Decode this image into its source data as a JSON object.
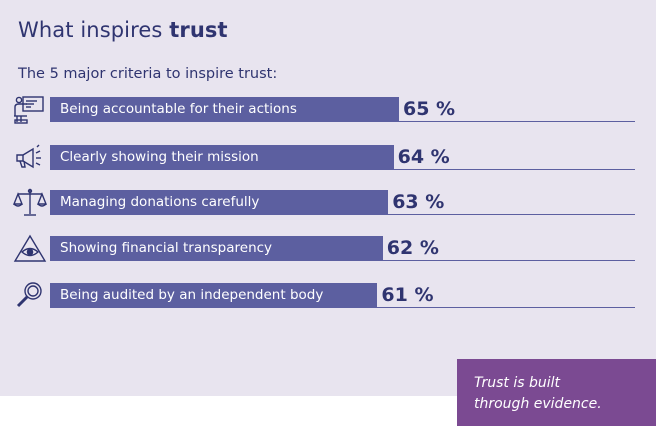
{
  "title_regular": "What inspires",
  "title_bold": "trust",
  "chart_data": {
    "type": "bar",
    "orientation": "horizontal",
    "title": "What inspires trust",
    "subtitle": "The 5 major criteria to inspire trust:",
    "unit": "%",
    "xlim": [
      0,
      100
    ],
    "categories": [
      "Being accountable for their actions",
      "Clearly showing their mission",
      "Managing donations carefully",
      "Showing financial transparency",
      "Being audited by an independent body"
    ],
    "values": [
      65,
      64,
      63,
      62,
      61
    ],
    "value_labels": [
      "65 %",
      "64 %",
      "63 %",
      "62 %",
      "61 %"
    ],
    "icons": [
      "presentation-board-icon",
      "megaphone-icon",
      "scales-icon",
      "eye-triangle-icon",
      "magnifier-icon"
    ]
  },
  "quote": {
    "line1": "Trust is built",
    "line2": "through evidence."
  },
  "colors": {
    "background": "#e8e4ef",
    "bar": "#5c5fa0",
    "text_dark": "#2f3470",
    "quote_bg": "#7b4a92"
  }
}
